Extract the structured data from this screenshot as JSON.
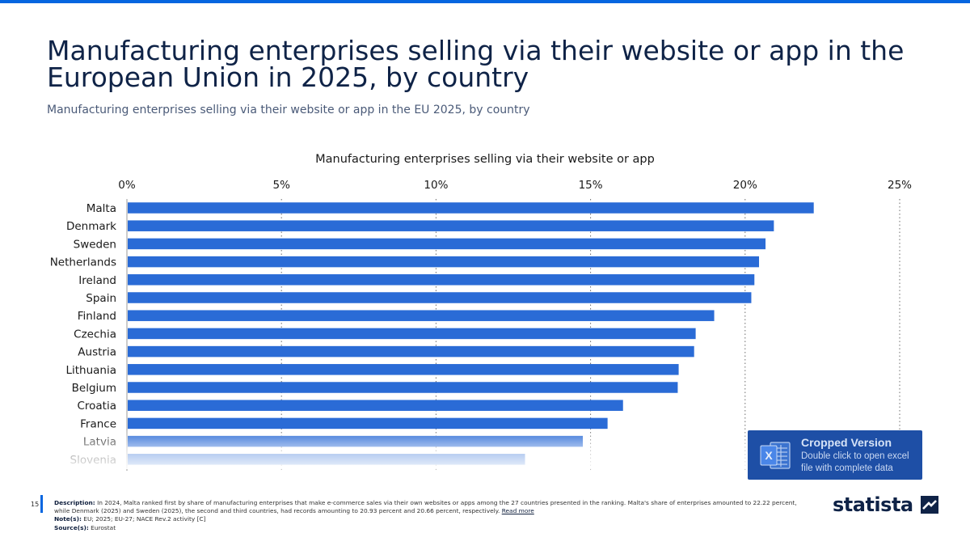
{
  "header": {
    "title": "Manufacturing enterprises selling via their website or app in the European Union in 2025, by country",
    "subtitle": "Manufacturing enterprises selling via their website or app in the EU 2025, by country"
  },
  "chart_data": {
    "type": "bar",
    "orientation": "horizontal",
    "title": "Manufacturing enterprises selling via their website or app",
    "categories": [
      "Malta",
      "Denmark",
      "Sweden",
      "Netherlands",
      "Ireland",
      "Spain",
      "Finland",
      "Czechia",
      "Austria",
      "Lithuania",
      "Belgium",
      "Croatia",
      "France",
      "Latvia",
      "Slovenia"
    ],
    "values": [
      22.22,
      20.93,
      20.66,
      20.45,
      20.3,
      20.2,
      19.0,
      18.4,
      18.35,
      17.85,
      17.82,
      16.05,
      15.55,
      14.75,
      12.88
    ],
    "ticks": [
      "0%",
      "5%",
      "10%",
      "15%",
      "20%",
      "25%"
    ],
    "xlim": [
      0,
      25
    ],
    "unit": "%",
    "axis_position": "top",
    "grid": true,
    "bar_color": "#2a6bd6"
  },
  "overlay": {
    "title": "Cropped Version",
    "text": "Double click to open excel file with complete data",
    "color": "#1e4fa6"
  },
  "footer": {
    "page_number": "15",
    "description_label": "Description:",
    "description": "In 2024, Malta ranked first by share of manufacturing enterprises that make e-commerce sales via their own websites or apps among the 27 countries presented in the ranking. Malta's share of enterprises amounted to 22.22 percent, while Denmark (2025) and Sweden (2025), the second and third countries, had records amounting to 20.93 percent and 20.66 percent, respectively.",
    "read_more": "Read more",
    "notes_label": "Note(s):",
    "notes": "EU; 2025; EU-27; NACE Rev.2 activity [C]",
    "source_label": "Source(s):",
    "source": "Eurostat"
  },
  "brand": {
    "logo_text": "statista",
    "accent": "#0666e0"
  }
}
